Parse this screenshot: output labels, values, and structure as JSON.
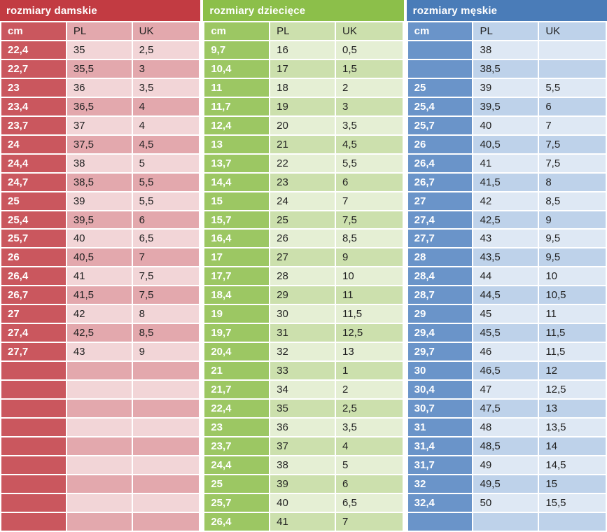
{
  "chart_data": [
    {
      "type": "table",
      "id": "damskie",
      "title": "rozmiary damskie",
      "columns": [
        "cm",
        "PL",
        "UK"
      ],
      "colors": {
        "title_bg": "#c23b42",
        "cm_bg": "#ca575e",
        "row_light": "#f2d5d7",
        "row_dark": "#e3a8ad"
      },
      "rows": [
        [
          "22,4",
          "35",
          "2,5"
        ],
        [
          "22,7",
          "35,5",
          "3"
        ],
        [
          "23",
          "36",
          "3,5"
        ],
        [
          "23,4",
          "36,5",
          "4"
        ],
        [
          "23,7",
          "37",
          "4"
        ],
        [
          "24",
          "37,5",
          "4,5"
        ],
        [
          "24,4",
          "38",
          "5"
        ],
        [
          "24,7",
          "38,5",
          "5,5"
        ],
        [
          "25",
          "39",
          "5,5"
        ],
        [
          "25,4",
          "39,5",
          "6"
        ],
        [
          "25,7",
          "40",
          "6,5"
        ],
        [
          "26",
          "40,5",
          "7"
        ],
        [
          "26,4",
          "41",
          "7,5"
        ],
        [
          "26,7",
          "41,5",
          "7,5"
        ],
        [
          "27",
          "42",
          "8"
        ],
        [
          "27,4",
          "42,5",
          "8,5"
        ],
        [
          "27,7",
          "43",
          "9"
        ],
        [
          "",
          "",
          ""
        ],
        [
          "",
          "",
          ""
        ],
        [
          "",
          "",
          ""
        ],
        [
          "",
          "",
          ""
        ],
        [
          "",
          "",
          ""
        ],
        [
          "",
          "",
          ""
        ],
        [
          "",
          "",
          ""
        ],
        [
          "",
          "",
          ""
        ],
        [
          "",
          "",
          ""
        ]
      ]
    },
    {
      "type": "table",
      "id": "dzieciece",
      "title": "rozmiary dziecięce",
      "columns": [
        "cm",
        "PL",
        "UK"
      ],
      "colors": {
        "title_bg": "#8cbf4a",
        "cm_bg": "#9cc763",
        "row_light": "#e5efd4",
        "row_dark": "#cce0ad"
      },
      "rows": [
        [
          "9,7",
          "16",
          "0,5"
        ],
        [
          "10,4",
          "17",
          "1,5"
        ],
        [
          "11",
          "18",
          "2"
        ],
        [
          "11,7",
          "19",
          "3"
        ],
        [
          "12,4",
          "20",
          "3,5"
        ],
        [
          "13",
          "21",
          "4,5"
        ],
        [
          "13,7",
          "22",
          "5,5"
        ],
        [
          "14,4",
          "23",
          "6"
        ],
        [
          "15",
          "24",
          "7"
        ],
        [
          "15,7",
          "25",
          "7,5"
        ],
        [
          "16,4",
          "26",
          "8,5"
        ],
        [
          "17",
          "27",
          "9"
        ],
        [
          "17,7",
          "28",
          "10"
        ],
        [
          "18,4",
          "29",
          "11"
        ],
        [
          "19",
          "30",
          "11,5"
        ],
        [
          "19,7",
          "31",
          "12,5"
        ],
        [
          "20,4",
          "32",
          "13"
        ],
        [
          "21",
          "33",
          "1"
        ],
        [
          "21,7",
          "34",
          "2"
        ],
        [
          "22,4",
          "35",
          "2,5"
        ],
        [
          "23",
          "36",
          "3,5"
        ],
        [
          "23,7",
          "37",
          "4"
        ],
        [
          "24,4",
          "38",
          "5"
        ],
        [
          "25",
          "39",
          "6"
        ],
        [
          "25,7",
          "40",
          "6,5"
        ],
        [
          "26,4",
          "41",
          "7"
        ]
      ]
    },
    {
      "type": "table",
      "id": "meskie",
      "title": "rozmiary męskie",
      "columns": [
        "cm",
        "PL",
        "UK"
      ],
      "colors": {
        "title_bg": "#4a7cb8",
        "cm_bg": "#6a94c9",
        "row_light": "#dee8f4",
        "row_dark": "#bed2ea"
      },
      "rows": [
        [
          "",
          "38",
          ""
        ],
        [
          "",
          "38,5",
          ""
        ],
        [
          "25",
          "39",
          "5,5"
        ],
        [
          "25,4",
          "39,5",
          "6"
        ],
        [
          "25,7",
          "40",
          "7"
        ],
        [
          "26",
          "40,5",
          "7,5"
        ],
        [
          "26,4",
          "41",
          "7,5"
        ],
        [
          "26,7",
          "41,5",
          "8"
        ],
        [
          "27",
          "42",
          "8,5"
        ],
        [
          "27,4",
          "42,5",
          "9"
        ],
        [
          "27,7",
          "43",
          "9,5"
        ],
        [
          "28",
          "43,5",
          "9,5"
        ],
        [
          "28,4",
          "44",
          "10"
        ],
        [
          "28,7",
          "44,5",
          "10,5"
        ],
        [
          "29",
          "45",
          "11"
        ],
        [
          "29,4",
          "45,5",
          "11,5"
        ],
        [
          "29,7",
          "46",
          "11,5"
        ],
        [
          "30",
          "46,5",
          "12"
        ],
        [
          "30,4",
          "47",
          "12,5"
        ],
        [
          "30,7",
          "47,5",
          "13"
        ],
        [
          "31",
          "48",
          "13,5"
        ],
        [
          "31,4",
          "48,5",
          "14"
        ],
        [
          "31,7",
          "49",
          "14,5"
        ],
        [
          "32",
          "49,5",
          "15"
        ],
        [
          "32,4",
          "50",
          "15,5"
        ],
        [
          "",
          "",
          ""
        ]
      ]
    }
  ]
}
